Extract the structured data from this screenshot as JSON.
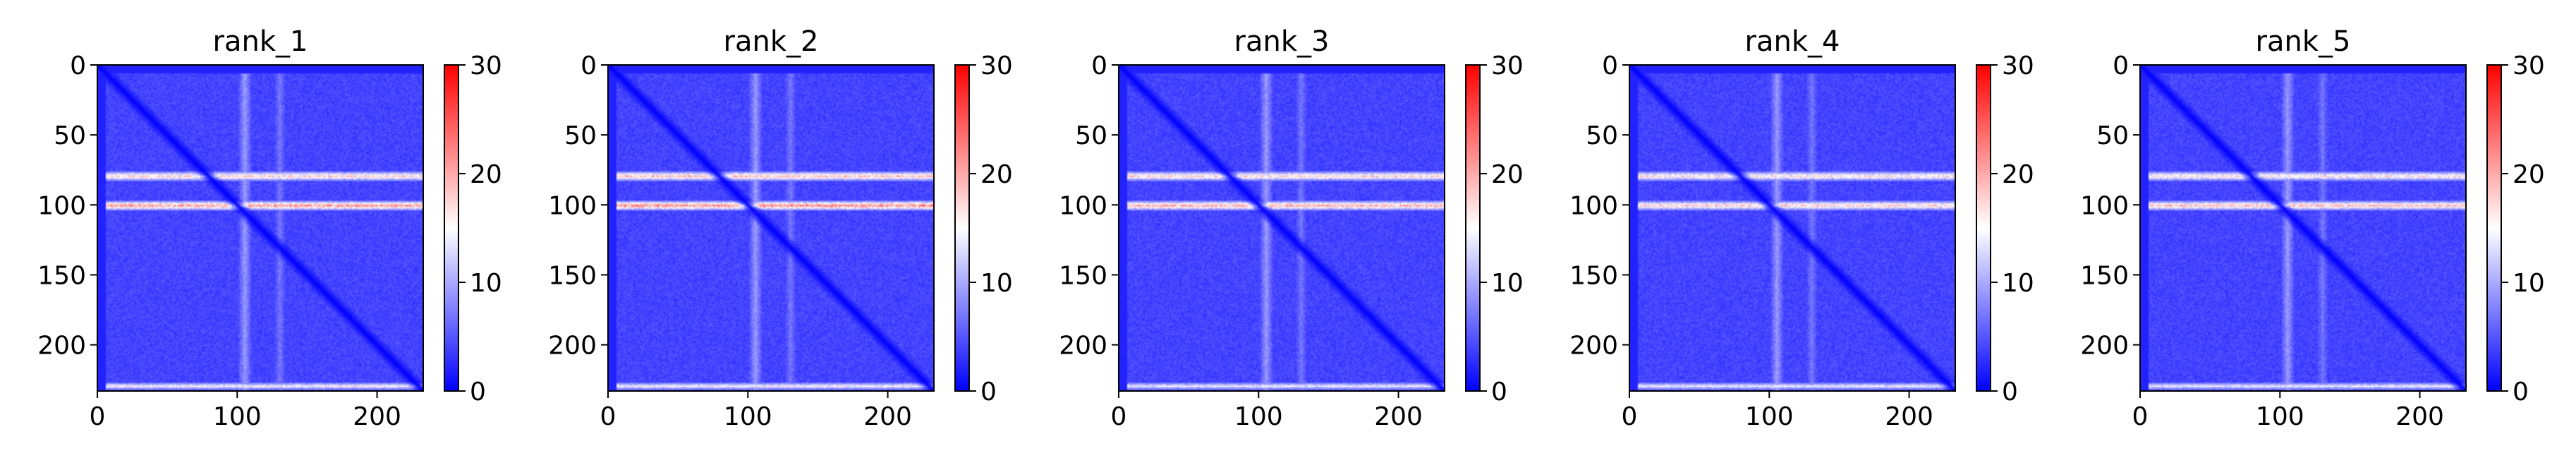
{
  "chart_data": [
    {
      "type": "heatmap",
      "title": "rank_1",
      "matrix_size": 233,
      "xlim": [
        0,
        233
      ],
      "ylim": [
        233,
        0
      ],
      "x_ticks": [
        0,
        100,
        200
      ],
      "y_ticks": [
        0,
        50,
        100,
        150,
        200
      ],
      "colorbar": {
        "range": [
          0,
          30
        ],
        "ticks": [
          0,
          10,
          20,
          30
        ],
        "colormap": "bwr"
      },
      "background_value": 4,
      "diagonal_value": 0,
      "high_rows": [
        {
          "center": 79,
          "width": 3,
          "value": 18
        },
        {
          "center": 100,
          "width": 3,
          "value": 21
        },
        {
          "center": 229,
          "width": 2,
          "value": 15
        }
      ],
      "light_columns": [
        {
          "center": 105,
          "width": 4,
          "value": 9
        },
        {
          "center": 130,
          "width": 3,
          "value": 7
        }
      ]
    },
    {
      "type": "heatmap",
      "title": "rank_2",
      "matrix_size": 233,
      "xlim": [
        0,
        233
      ],
      "ylim": [
        233,
        0
      ],
      "x_ticks": [
        0,
        100,
        200
      ],
      "y_ticks": [
        0,
        50,
        100,
        150,
        200
      ],
      "colorbar": {
        "range": [
          0,
          30
        ],
        "ticks": [
          0,
          10,
          20,
          30
        ],
        "colormap": "bwr"
      },
      "background_value": 4,
      "diagonal_value": 0,
      "high_rows": [
        {
          "center": 79,
          "width": 3,
          "value": 19
        },
        {
          "center": 100,
          "width": 3,
          "value": 22
        },
        {
          "center": 229,
          "width": 2,
          "value": 15
        }
      ],
      "light_columns": [
        {
          "center": 105,
          "width": 4,
          "value": 9
        },
        {
          "center": 130,
          "width": 3,
          "value": 7
        }
      ]
    },
    {
      "type": "heatmap",
      "title": "rank_3",
      "matrix_size": 233,
      "xlim": [
        0,
        233
      ],
      "ylim": [
        233,
        0
      ],
      "x_ticks": [
        0,
        100,
        200
      ],
      "y_ticks": [
        0,
        50,
        100,
        150,
        200
      ],
      "colorbar": {
        "range": [
          0,
          30
        ],
        "ticks": [
          0,
          10,
          20,
          30
        ],
        "colormap": "bwr"
      },
      "background_value": 4,
      "diagonal_value": 0,
      "high_rows": [
        {
          "center": 79,
          "width": 3,
          "value": 18
        },
        {
          "center": 100,
          "width": 3,
          "value": 20
        },
        {
          "center": 229,
          "width": 2,
          "value": 14
        }
      ],
      "light_columns": [
        {
          "center": 105,
          "width": 4,
          "value": 9
        },
        {
          "center": 130,
          "width": 3,
          "value": 7
        }
      ]
    },
    {
      "type": "heatmap",
      "title": "rank_4",
      "matrix_size": 233,
      "xlim": [
        0,
        233
      ],
      "ylim": [
        233,
        0
      ],
      "x_ticks": [
        0,
        100,
        200
      ],
      "y_ticks": [
        0,
        50,
        100,
        150,
        200
      ],
      "colorbar": {
        "range": [
          0,
          30
        ],
        "ticks": [
          0,
          10,
          20,
          30
        ],
        "colormap": "bwr"
      },
      "background_value": 4,
      "diagonal_value": 0,
      "high_rows": [
        {
          "center": 79,
          "width": 3,
          "value": 17
        },
        {
          "center": 100,
          "width": 3,
          "value": 18
        },
        {
          "center": 229,
          "width": 2,
          "value": 14
        }
      ],
      "light_columns": [
        {
          "center": 105,
          "width": 4,
          "value": 9
        },
        {
          "center": 130,
          "width": 3,
          "value": 7
        }
      ]
    },
    {
      "type": "heatmap",
      "title": "rank_5",
      "matrix_size": 233,
      "xlim": [
        0,
        233
      ],
      "ylim": [
        233,
        0
      ],
      "x_ticks": [
        0,
        100,
        200
      ],
      "y_ticks": [
        0,
        50,
        100,
        150,
        200
      ],
      "colorbar": {
        "range": [
          0,
          30
        ],
        "ticks": [
          0,
          10,
          20,
          30
        ],
        "colormap": "bwr"
      },
      "background_value": 4,
      "diagonal_value": 0,
      "high_rows": [
        {
          "center": 79,
          "width": 3,
          "value": 17
        },
        {
          "center": 100,
          "width": 3,
          "value": 19
        },
        {
          "center": 229,
          "width": 2,
          "value": 14
        }
      ],
      "light_columns": [
        {
          "center": 105,
          "width": 4,
          "value": 9
        },
        {
          "center": 130,
          "width": 3,
          "value": 7
        }
      ]
    }
  ]
}
